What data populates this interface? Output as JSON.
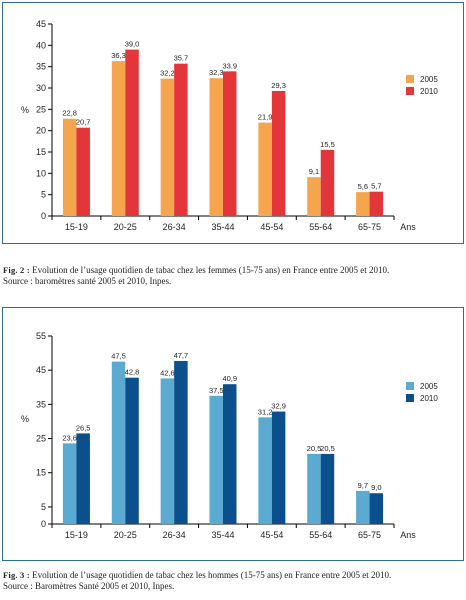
{
  "colors": {
    "women_2005": "#f5a54e",
    "women_2010": "#e2363b",
    "men_2005": "#5aaad2",
    "men_2010": "#0b4f8c",
    "frame": "#2f6f8f"
  },
  "chart_data": [
    {
      "type": "bar",
      "categories": [
        "15-19",
        "20-25",
        "26-34",
        "35-44",
        "45-54",
        "55-64",
        "65-75"
      ],
      "series": [
        {
          "name": "2005",
          "values": [
            22.8,
            36.3,
            32.2,
            32.3,
            21.9,
            9.1,
            5.6
          ],
          "labels": [
            "22,8",
            "36,3",
            "32,2",
            "32,3",
            "21,9",
            "9,1",
            "5,6"
          ]
        },
        {
          "name": "2010",
          "values": [
            20.7,
            39.0,
            35.7,
            33.9,
            29.3,
            15.5,
            5.7
          ],
          "labels": [
            "20,7",
            "39,0",
            "35.7",
            "33.9",
            "29,3",
            "15,5",
            "5,7"
          ]
        }
      ],
      "ylabel": "%",
      "xlabel": "Ans",
      "yticks": [
        0,
        5,
        10,
        15,
        20,
        25,
        30,
        35,
        40,
        45
      ],
      "ylim": [
        0,
        45
      ],
      "legend": "right",
      "grid": false
    },
    {
      "type": "bar",
      "categories": [
        "15-19",
        "20-25",
        "26-34",
        "35-44",
        "45-54",
        "55-64",
        "65-75"
      ],
      "series": [
        {
          "name": "2005",
          "values": [
            23.6,
            47.5,
            42.6,
            37.5,
            31.2,
            20.5,
            9.7
          ],
          "labels": [
            "23,6",
            "47,5",
            "42,6",
            "37,5",
            "31,2",
            "20,5",
            "9,7"
          ]
        },
        {
          "name": "2010",
          "values": [
            26.5,
            42.8,
            47.7,
            40.9,
            32.9,
            20.5,
            9.0
          ],
          "labels": [
            "26,5",
            "42,8",
            "47,7",
            "40,9",
            "32,9",
            "20,5",
            "9,0"
          ]
        }
      ],
      "ylabel": "%",
      "xlabel": "Ans",
      "yticks": [
        0,
        5,
        15,
        25,
        35,
        45,
        55
      ],
      "ylim": [
        0,
        55
      ],
      "legend": "right",
      "grid": false
    }
  ],
  "captions": [
    {
      "label": "Fig. 2 :",
      "line1": "Evolution de l’usage quotidien de tabac chez les femmes (15-75 ans) en France entre 2005 et 2010.",
      "line2": "Source : baromètres santé 2005 et 2010, Inpes."
    },
    {
      "label": "Fig. 3 :",
      "line1": "Evolution de l’usage quotidien de tabac chez les hommes (15-75 ans) en France entre 2005 et 2010.",
      "line2": "Source : Baromètres Santé 2005 et 2010, Inpes."
    }
  ]
}
